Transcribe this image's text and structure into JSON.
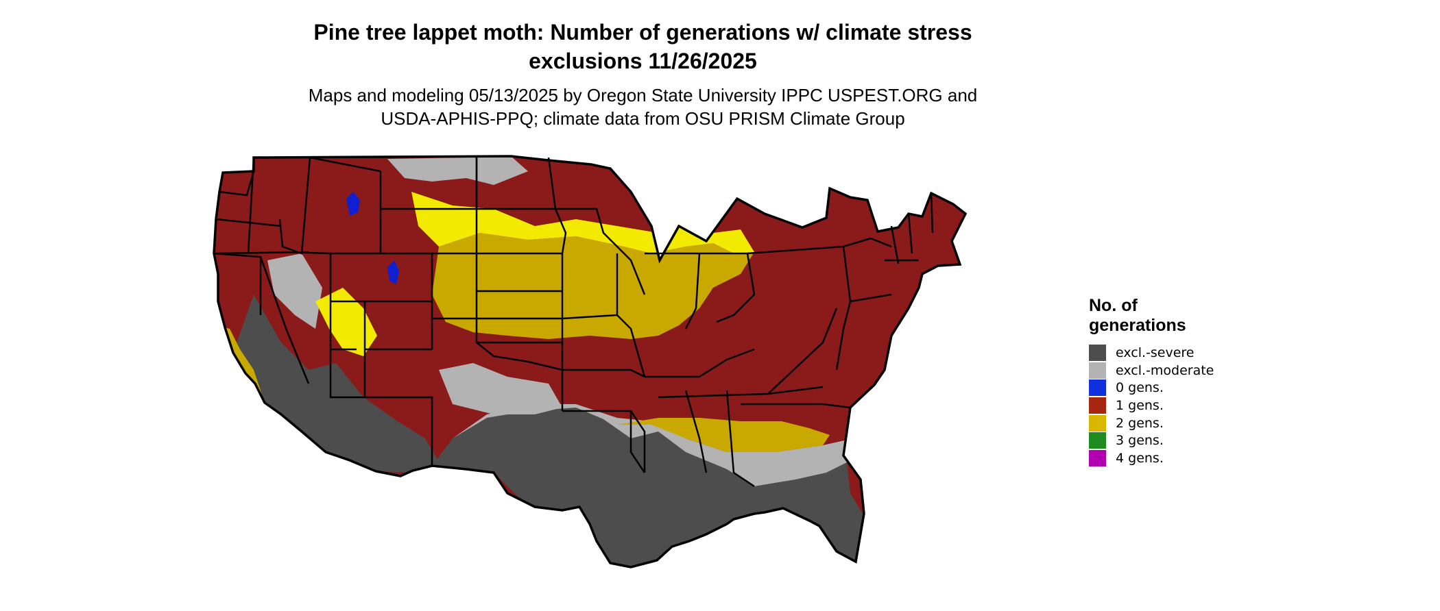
{
  "header": {
    "title_line1": "Pine tree lappet moth: Number of generations w/ climate stress",
    "title_line2": "exclusions 11/26/2025",
    "subtitle_line1": "Maps and modeling 05/13/2025 by Oregon State University IPPC USPEST.ORG and",
    "subtitle_line2": "USDA-APHIS-PPQ; climate data from OSU PRISM Climate Group"
  },
  "legend": {
    "title_line1": "No. of",
    "title_line2": "generations",
    "items": [
      {
        "label": "excl.-severe",
        "color": "#4d4d4d"
      },
      {
        "label": "excl.-moderate",
        "color": "#b3b3b3"
      },
      {
        "label": "0 gens.",
        "color": "#1030e0"
      },
      {
        "label": "1 gens.",
        "color": "#a8260f"
      },
      {
        "label": "2 gens.",
        "color": "#d9b600"
      },
      {
        "label": "3 gens.",
        "color": "#1f8a1f"
      },
      {
        "label": "4 gens.",
        "color": "#b000b0"
      }
    ]
  },
  "map_colors": {
    "severe": "#4d4d4d",
    "moderate": "#b3b3b3",
    "one_gen": "#8b1a1a",
    "two_gen": "#c9a800",
    "two_gen_bright": "#f2ea00",
    "zero_gen": "#1020d0",
    "three_gen": "#5ee85e",
    "border": "#000000"
  }
}
